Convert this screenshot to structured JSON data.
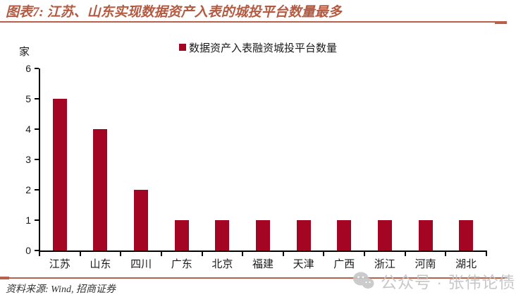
{
  "header": {
    "title": "图表7: 江苏、山东实现数据资产入表的城投平台数量最多"
  },
  "chart_data": {
    "type": "bar",
    "title": "",
    "legend": "数据资产入表融资城投平台数量",
    "legend_position": "top-center",
    "unit_label": "家",
    "categories": [
      "江苏",
      "山东",
      "四川",
      "广东",
      "北京",
      "福建",
      "天津",
      "广西",
      "浙江",
      "河南",
      "湖北"
    ],
    "values": [
      5,
      4,
      2,
      1,
      1,
      1,
      1,
      1,
      1,
      1,
      1
    ],
    "xlabel": "",
    "ylabel": "家",
    "ylim": [
      0,
      6
    ],
    "ytick_interval": 1,
    "yticks": [
      0,
      1,
      2,
      3,
      4,
      5,
      6
    ],
    "grid": false,
    "bar_color": "#A30523"
  },
  "footer": {
    "source_label": "资料来源: Wind, 招商证券"
  },
  "watermark": {
    "icon": "wechat-icon",
    "text": "公众号 · 张伟论债"
  },
  "colors": {
    "accent": "#B86049",
    "bar": "#A30523",
    "axis": "#000000",
    "text": "#1A1A1A",
    "watermark": "#C2C2C2"
  }
}
